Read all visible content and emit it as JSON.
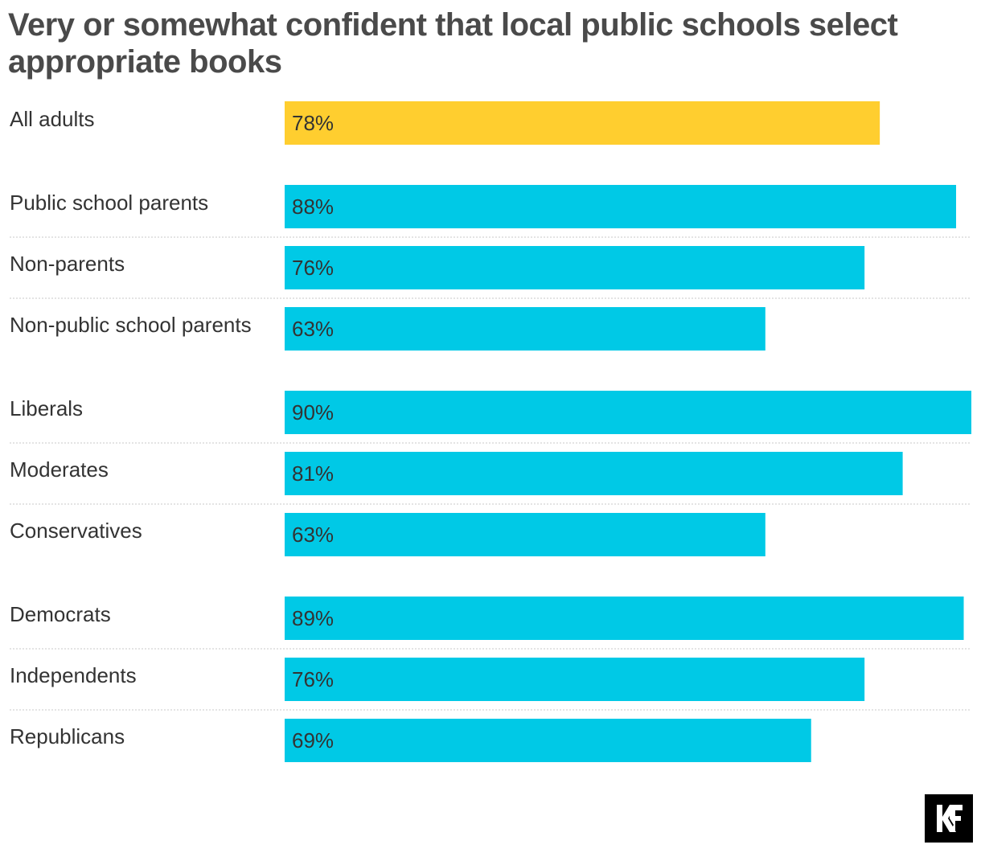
{
  "chart_data": {
    "type": "bar",
    "orientation": "horizontal",
    "title": "Very or somewhat confident that local public schools select appropriate books",
    "xlim": [
      0,
      90
    ],
    "grid": false,
    "groups": [
      [
        {
          "label": "All adults",
          "value": 78,
          "value_label": "78%"
        }
      ],
      [
        {
          "label": "Public school parents",
          "value": 88,
          "value_label": "88%"
        },
        {
          "label": "Non-parents",
          "value": 76,
          "value_label": "76%"
        },
        {
          "label": "Non-public school parents",
          "value": 63,
          "value_label": "63%"
        }
      ],
      [
        {
          "label": "Liberals",
          "value": 90,
          "value_label": "90%"
        },
        {
          "label": "Moderates",
          "value": 81,
          "value_label": "81%"
        },
        {
          "label": "Conservatives",
          "value": 63,
          "value_label": "63%"
        }
      ],
      [
        {
          "label": "Democrats",
          "value": 89,
          "value_label": "89%"
        },
        {
          "label": "Independents",
          "value": 76,
          "value_label": "76%"
        },
        {
          "label": "Republicans",
          "value": 69,
          "value_label": "69%"
        }
      ]
    ],
    "colors": {
      "highlight": "#FFCE2F",
      "bar": "#00C9E6",
      "separator": "#c8c8c8"
    }
  },
  "logo": {
    "name": "kff-logo-icon"
  }
}
